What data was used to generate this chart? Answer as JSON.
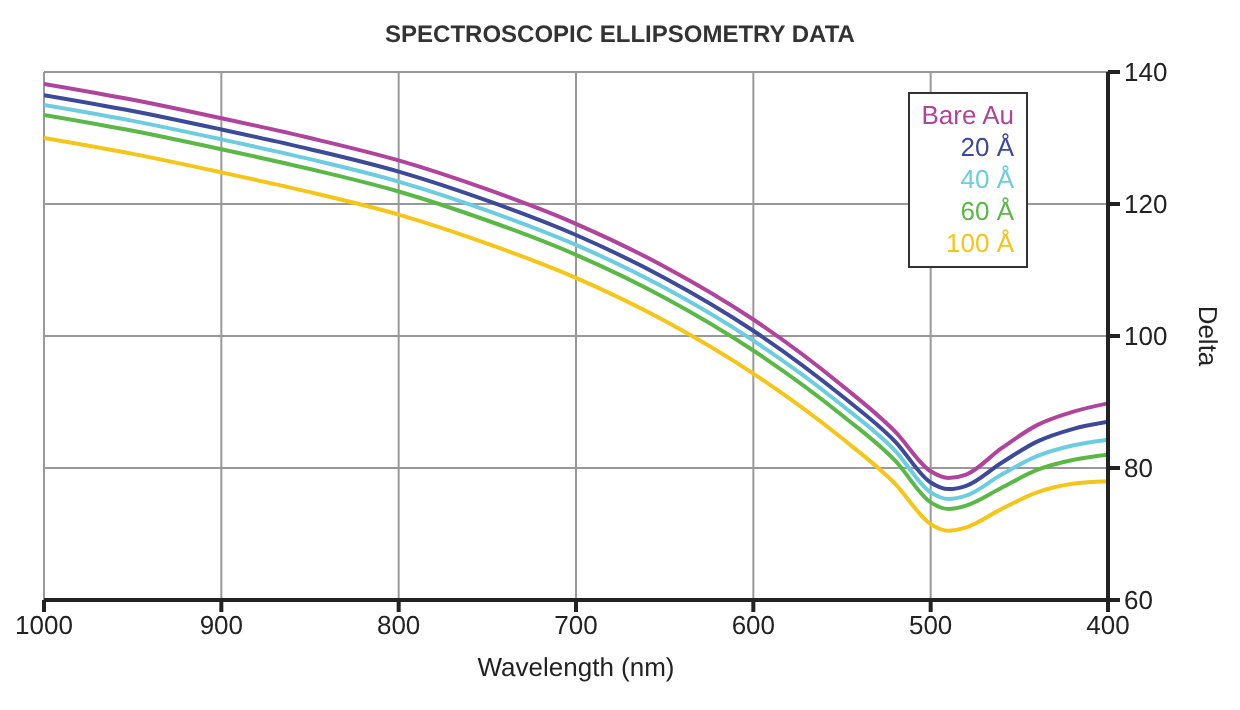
{
  "chart_data": {
    "type": "line",
    "title": "SPECTROSCOPIC ELLIPSOMETRY DATA",
    "xlabel": "Wavelength (nm)",
    "ylabel": "Delta",
    "x": [
      1000,
      950,
      900,
      850,
      800,
      750,
      700,
      650,
      600,
      550,
      520,
      500,
      490,
      480,
      460,
      440,
      420,
      400
    ],
    "series": [
      {
        "name": "Bare Au",
        "color": "#b0449c",
        "values": [
          138.2,
          135.8,
          133,
          130,
          126.6,
          122.2,
          117,
          110.5,
          102.5,
          92.5,
          85.5,
          79.5,
          78.5,
          79,
          83,
          86.5,
          88.5,
          89.8
        ]
      },
      {
        "name": "20 Å",
        "color": "#3d4a9a",
        "values": [
          136.5,
          134.1,
          131.3,
          128.3,
          124.9,
          120.5,
          115.3,
          108.8,
          100.8,
          90.9,
          84,
          77.8,
          76.8,
          77.3,
          80.8,
          84,
          85.9,
          87
        ]
      },
      {
        "name": "40 Å",
        "color": "#6ccde0",
        "values": [
          135,
          132.6,
          129.8,
          126.8,
          123.4,
          119,
          113.8,
          107.3,
          99.3,
          89.5,
          82.6,
          76.3,
          75.3,
          75.8,
          79,
          81.8,
          83.4,
          84.3
        ]
      },
      {
        "name": "60 Å",
        "color": "#5ab946",
        "values": [
          133.5,
          131.1,
          128.3,
          125.3,
          121.9,
          117.5,
          112.3,
          105.8,
          97.8,
          88,
          81.1,
          74.8,
          73.8,
          74.3,
          77,
          79.7,
          81.2,
          82
        ]
      },
      {
        "name": "100 Å",
        "color": "#f5c518",
        "values": [
          130,
          127.6,
          124.8,
          121.8,
          118.4,
          114,
          108.8,
          102.3,
          94.3,
          84.5,
          77.6,
          71.5,
          70.5,
          71,
          73.8,
          76.3,
          77.6,
          78
        ]
      }
    ],
    "xlim": [
      1000,
      400
    ],
    "xticks": [
      1000,
      900,
      800,
      700,
      600,
      500,
      400
    ],
    "ylim": [
      60,
      140
    ],
    "yticks": [
      60,
      80,
      100,
      120,
      140
    ],
    "grid": true,
    "legend": "top right",
    "marker": "none",
    "line_style": "solid"
  }
}
